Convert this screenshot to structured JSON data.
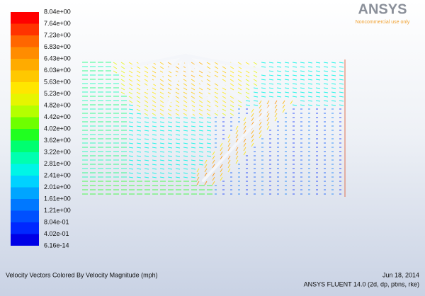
{
  "logo": {
    "brand": "ANSYS",
    "note": "Noncommercial use only"
  },
  "colorbar": {
    "labels": [
      "8.04e+00",
      "7.64e+00",
      "7.23e+00",
      "6.83e+00",
      "6.43e+00",
      "6.03e+00",
      "5.63e+00",
      "5.23e+00",
      "4.82e+00",
      "4.42e+00",
      "4.02e+00",
      "3.62e+00",
      "3.22e+00",
      "2.81e+00",
      "2.41e+00",
      "2.01e+00",
      "1.61e+00",
      "1.21e+00",
      "8.04e-01",
      "4.02e-01",
      "6.16e-14"
    ],
    "colors": [
      "#ff0000",
      "#ff3300",
      "#ff6600",
      "#ff8c00",
      "#ffab00",
      "#ffc800",
      "#ffe600",
      "#e6f500",
      "#b4ff00",
      "#6eff00",
      "#20ff20",
      "#00ff70",
      "#00ffb0",
      "#00f5e6",
      "#00d2ff",
      "#00a5ff",
      "#0078ff",
      "#0050ff",
      "#0028ff",
      "#0000e6"
    ]
  },
  "footer": {
    "caption": "Velocity Vectors Colored By Velocity Magnitude (mph)",
    "date": "Jun 18, 2014",
    "version": "ANSYS FLUENT 14.0 (2d, dp, pbns, rke)"
  }
}
